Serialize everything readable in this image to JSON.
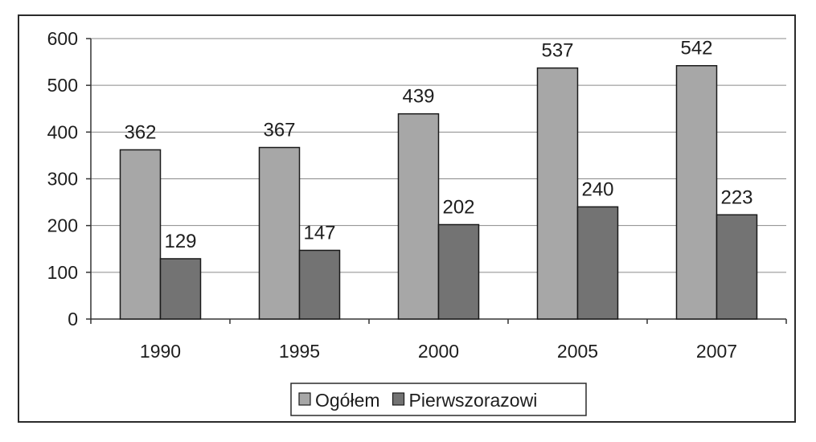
{
  "chart_data": {
    "type": "bar",
    "categories": [
      "1990",
      "1995",
      "2000",
      "2005",
      "2007"
    ],
    "series": [
      {
        "name": "Ogółem",
        "values": [
          362,
          367,
          439,
          537,
          542
        ],
        "color": "#a7a7a7"
      },
      {
        "name": "Pierwszorazowi",
        "values": [
          129,
          147,
          202,
          240,
          223
        ],
        "color": "#737373"
      }
    ],
    "data_labels": true,
    "ylim": [
      0,
      600
    ],
    "yticks": [
      "0",
      "100",
      "200",
      "300",
      "400",
      "500",
      "600"
    ],
    "grid": true,
    "legend": "bottom-center",
    "xlabel": "",
    "ylabel": "",
    "title": ""
  }
}
